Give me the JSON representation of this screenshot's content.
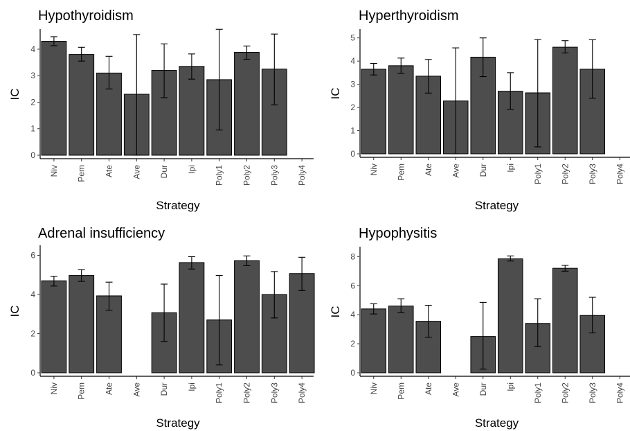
{
  "chart_data": [
    {
      "type": "bar",
      "title": "Hypothyroidism",
      "xlabel": "Strategy",
      "ylabel": "IC",
      "ylim": [
        0,
        4.6
      ],
      "yticks": [
        0,
        1,
        2,
        3,
        4
      ],
      "categories": [
        "Niv",
        "Pem",
        "Ate",
        "Ave",
        "Dur",
        "Ipi",
        "Poly1",
        "Poly2",
        "Poly3",
        "Poly4"
      ],
      "values": [
        4.3,
        3.8,
        3.1,
        2.3,
        3.2,
        3.35,
        2.85,
        3.88,
        3.25,
        null
      ],
      "error_low": [
        4.13,
        3.55,
        2.5,
        0,
        2.17,
        2.87,
        0.95,
        3.62,
        1.9,
        null
      ],
      "error_high": [
        4.47,
        4.07,
        3.73,
        4.55,
        4.2,
        3.82,
        4.75,
        4.12,
        4.57,
        null
      ],
      "grid": false
    },
    {
      "type": "bar",
      "title": "Hyperthyroidism",
      "xlabel": "Strategy",
      "ylabel": "IC",
      "ylim": [
        0,
        5.2
      ],
      "yticks": [
        0,
        1,
        2,
        3,
        4,
        5
      ],
      "categories": [
        "Niv",
        "Pem",
        "Ate",
        "Ave",
        "Dur",
        "Ipi",
        "Poly1",
        "Poly2",
        "Poly3",
        "Poly4"
      ],
      "values": [
        3.65,
        3.8,
        3.35,
        2.28,
        4.17,
        2.7,
        2.63,
        4.6,
        3.65,
        null
      ],
      "error_low": [
        3.4,
        3.47,
        2.62,
        0,
        3.33,
        1.92,
        0.3,
        4.35,
        2.4,
        null
      ],
      "error_high": [
        3.9,
        4.13,
        4.07,
        4.57,
        5.0,
        3.5,
        4.93,
        4.88,
        4.92,
        null
      ],
      "grid": false
    },
    {
      "type": "bar",
      "title": "Adrenal insufficiency",
      "xlabel": "Strategy",
      "ylabel": "IC",
      "ylim": [
        0,
        6.3
      ],
      "yticks": [
        0,
        2,
        4,
        6
      ],
      "categories": [
        "Niv",
        "Pem",
        "Ate",
        "Ave",
        "Dur",
        "Ipi",
        "Poly1",
        "Poly2",
        "Poly3",
        "Poly4"
      ],
      "values": [
        4.7,
        4.97,
        3.93,
        null,
        3.07,
        5.63,
        2.7,
        5.73,
        4.0,
        5.07
      ],
      "error_low": [
        4.43,
        4.67,
        3.2,
        null,
        1.6,
        5.3,
        0.4,
        5.47,
        2.8,
        4.2
      ],
      "error_high": [
        4.93,
        5.27,
        4.63,
        null,
        4.53,
        5.93,
        4.97,
        5.97,
        5.17,
        5.9
      ],
      "grid": false
    },
    {
      "type": "bar",
      "title": "Hypophysitis",
      "xlabel": "Strategy",
      "ylabel": "IC",
      "ylim": [
        0,
        8.4
      ],
      "yticks": [
        0,
        2,
        4,
        6,
        8
      ],
      "categories": [
        "Niv",
        "Pem",
        "Ate",
        "Ave",
        "Dur",
        "Ipi",
        "Poly1",
        "Poly2",
        "Poly3",
        "Poly4"
      ],
      "values": [
        4.4,
        4.6,
        3.55,
        null,
        2.5,
        7.85,
        3.4,
        7.2,
        3.95,
        null
      ],
      "error_low": [
        4.05,
        4.15,
        2.45,
        null,
        0.25,
        7.7,
        1.8,
        7.0,
        2.75,
        null
      ],
      "error_high": [
        4.75,
        5.1,
        4.65,
        null,
        4.85,
        8.05,
        5.1,
        7.4,
        5.2,
        null
      ],
      "grid": false
    }
  ]
}
